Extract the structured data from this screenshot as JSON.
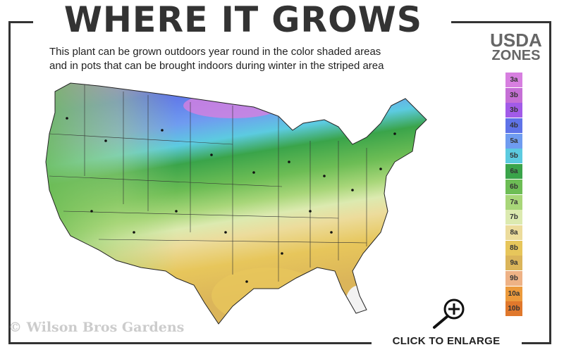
{
  "header": {
    "title": "WHERE IT GROWS",
    "subtitle_line1": "This plant can be grown outdoors year round in the color shaded areas",
    "subtitle_line2": "and in pots that can be brought indoors during winter in the striped area"
  },
  "legend": {
    "title_line1": "USDA",
    "title_line2": "ZONES",
    "zones": [
      {
        "label": "3a",
        "color": "#d77fe0"
      },
      {
        "label": "3b",
        "color": "#c56fd6"
      },
      {
        "label": "3b",
        "color": "#a25be8"
      },
      {
        "label": "4b",
        "color": "#5f73e8"
      },
      {
        "label": "5a",
        "color": "#6f9cf0"
      },
      {
        "label": "5b",
        "color": "#5ccbe0"
      },
      {
        "label": "6a",
        "color": "#3aa44a"
      },
      {
        "label": "6b",
        "color": "#6dbd55"
      },
      {
        "label": "7a",
        "color": "#a8d679"
      },
      {
        "label": "7b",
        "color": "#dceab0"
      },
      {
        "label": "8a",
        "color": "#ecdc9c"
      },
      {
        "label": "8b",
        "color": "#e7c65b"
      },
      {
        "label": "9a",
        "color": "#dbb55a"
      },
      {
        "label": "9b",
        "color": "#eeb285"
      },
      {
        "label": "10a",
        "color": "#ec9a3c"
      },
      {
        "label": "10b",
        "color": "#e0782c"
      }
    ]
  },
  "watermark": "© Wilson Bros Gardens",
  "footer": {
    "enlarge_label": "CLICK TO ENLARGE",
    "zoom_icon": "magnifier-plus-icon"
  }
}
